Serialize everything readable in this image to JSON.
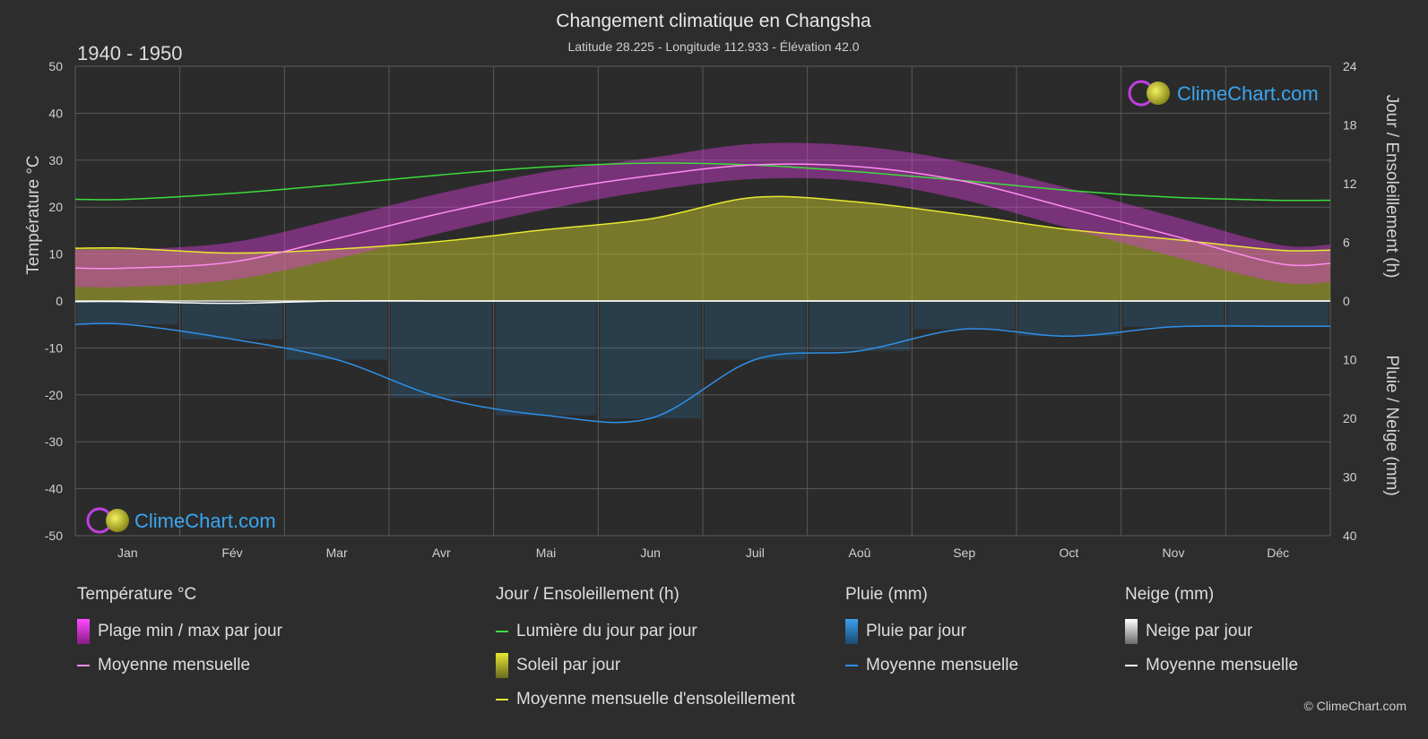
{
  "header": {
    "title": "Changement climatique en Changsha",
    "subtitle": "Latitude 28.225 - Longitude 112.933 - Élévation 42.0",
    "period": "1940 - 1950"
  },
  "brand": {
    "logo_text": "ClimeChart.com",
    "copyright": "© ClimeChart.com"
  },
  "colors": {
    "background": "#2d2d2d",
    "grid": "#5a5a5a",
    "daylight": "#3ddc3d",
    "sunshine_fill": "#b8b82a",
    "sunshine_line": "#e8e832",
    "temp_range": "#d63cd6",
    "temp_mean": "#ff8cf0",
    "rain": "#2a7fc0",
    "rain_line": "#2e90e8",
    "snow": "#c8c8c8",
    "snow_line": "#ffffff",
    "logo": "#39a6f2"
  },
  "chart_data": {
    "type": "climate-combo",
    "months": [
      "Jan",
      "Fév",
      "Mar",
      "Avr",
      "Mai",
      "Jun",
      "Juil",
      "Aoû",
      "Sep",
      "Oct",
      "Nov",
      "Déc"
    ],
    "axes": {
      "left": {
        "label": "Température °C",
        "min": -50,
        "max": 50,
        "ticks": [
          50,
          40,
          30,
          20,
          10,
          0,
          -10,
          -20,
          -30,
          -40,
          -50
        ]
      },
      "right_top": {
        "label": "Jour / Ensoleillement (h)",
        "min": 0,
        "max": 24,
        "ticks": [
          24,
          18,
          12,
          6,
          0
        ]
      },
      "right_bottom": {
        "label": "Pluie / Neige (mm)",
        "min": 0,
        "max": 40,
        "ticks": [
          0,
          10,
          20,
          30,
          40
        ]
      }
    },
    "grid": true,
    "series": [
      {
        "name": "Lumière du jour par jour",
        "unit": "h",
        "values": [
          10.4,
          11.0,
          11.9,
          12.9,
          13.7,
          14.1,
          13.9,
          13.2,
          12.3,
          11.3,
          10.6,
          10.3
        ]
      },
      {
        "name": "Moyenne mensuelle d'ensoleillement",
        "unit": "h",
        "values": [
          5.4,
          4.9,
          5.3,
          6.1,
          7.3,
          8.4,
          10.6,
          10.1,
          8.8,
          7.3,
          6.3,
          5.2
        ]
      },
      {
        "name": "Moyenne mensuelle",
        "group": "Température °C",
        "unit": "°C",
        "values": [
          7.0,
          8.3,
          13.3,
          18.7,
          23.3,
          26.7,
          29.0,
          28.6,
          25.5,
          19.8,
          13.9,
          8.0
        ]
      },
      {
        "name": "Plage min / max par jour",
        "group": "Température °C",
        "unit": "°C",
        "min": [
          3.0,
          4.5,
          9.0,
          14.5,
          19.5,
          23.5,
          26.0,
          25.5,
          21.5,
          15.5,
          9.5,
          4.0
        ],
        "max": [
          11.0,
          12.5,
          17.5,
          23.0,
          27.5,
          30.5,
          33.5,
          33.0,
          29.5,
          24.0,
          18.0,
          12.0
        ]
      },
      {
        "name": "Moyenne mensuelle",
        "group": "Pluie (mm)",
        "unit": "mm",
        "values": [
          4.0,
          6.5,
          10.0,
          16.5,
          19.5,
          20.0,
          10.0,
          8.5,
          4.8,
          6.0,
          4.4,
          4.3
        ]
      },
      {
        "name": "Moyenne mensuelle",
        "group": "Neige (mm)",
        "unit": "mm",
        "values": [
          0.1,
          0.4,
          0.0,
          0.0,
          0.0,
          0.0,
          0.0,
          0.0,
          0.0,
          0.0,
          0.0,
          0.0
        ]
      }
    ]
  },
  "legend": {
    "groups": [
      {
        "title": "Température °C",
        "items": [
          {
            "label": "Plage min / max par jour",
            "type": "box",
            "color": "#d63cd6"
          },
          {
            "label": "Moyenne mensuelle",
            "type": "line",
            "color": "#ff8cf0"
          }
        ]
      },
      {
        "title": "Jour / Ensoleillement (h)",
        "items": [
          {
            "label": "Lumière du jour par jour",
            "type": "line",
            "color": "#3ddc3d"
          },
          {
            "label": "Soleil par jour",
            "type": "box",
            "color": "#c6c62c"
          },
          {
            "label": "Moyenne mensuelle d'ensoleillement",
            "type": "line",
            "color": "#e8e832"
          }
        ]
      },
      {
        "title": "Pluie (mm)",
        "items": [
          {
            "label": "Pluie par jour",
            "type": "box",
            "color": "#2a7fc0"
          },
          {
            "label": "Moyenne mensuelle",
            "type": "line",
            "color": "#2e90e8"
          }
        ]
      },
      {
        "title": "Neige (mm)",
        "items": [
          {
            "label": "Neige par jour",
            "type": "box",
            "color": "#d8d8d8"
          },
          {
            "label": "Moyenne mensuelle",
            "type": "line",
            "color": "#ffffff"
          }
        ]
      }
    ]
  }
}
